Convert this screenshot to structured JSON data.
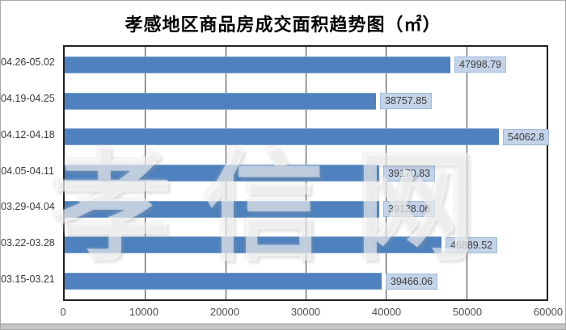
{
  "watermark": "孝信网",
  "chart_data": {
    "type": "bar",
    "orientation": "horizontal",
    "title": "孝感地区商品房成交面积趋势图（㎡）",
    "categories": [
      "04.26-05.02",
      "04.19-04.25",
      "04.12-04.18",
      "04.05-04.11",
      "03.29-04.04",
      "03.22-03.28",
      "03.15-03.21"
    ],
    "values": [
      47998.79,
      38757.85,
      54062.8,
      39170.83,
      39128.06,
      46889.52,
      39466.06
    ],
    "value_labels": [
      "47998.79",
      "38757.85",
      "54062.8",
      "39170.83",
      "39128.06",
      "46889.52",
      "39466.06"
    ],
    "xlabel": "",
    "ylabel": "",
    "xlim": [
      0,
      60000
    ],
    "x_ticks": [
      "0",
      "10000",
      "20000",
      "30000",
      "40000",
      "50000",
      "60000"
    ],
    "grid": true,
    "legend": "none",
    "bar_color": "#4e81bd",
    "label_box_bg": "#c3d3e8",
    "label_box_border": "#9fbadb",
    "plot_border_color": "#212121",
    "gridline_color": "#3d3d3d"
  }
}
